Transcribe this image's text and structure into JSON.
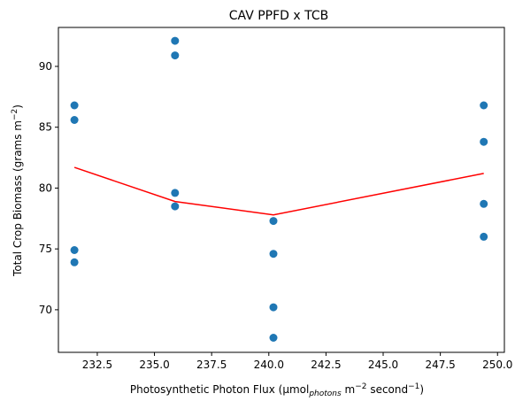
{
  "chart_data": {
    "type": "scatter",
    "title": "CAV PPFD x TCB",
    "xlabel_parts": {
      "prefix": "Photosynthetic Photon Flux (µmol",
      "subscript": "photons",
      "middle": " m",
      "sup1": "−2",
      "middle2": " second",
      "sup2": "−1",
      "suffix": ")"
    },
    "ylabel_parts": {
      "prefix": "Total Crop Biomass (grams m",
      "sup": "−2",
      "suffix": ")"
    },
    "xlim": [
      230.8,
      250.3
    ],
    "ylim": [
      66.5,
      93.2
    ],
    "xticks": [
      232.5,
      235.0,
      237.5,
      240.0,
      242.5,
      245.0,
      247.5,
      250.0
    ],
    "xtick_labels": [
      "232.5",
      "235.0",
      "237.5",
      "240.0",
      "242.5",
      "245.0",
      "247.5",
      "250.0"
    ],
    "yticks": [
      70,
      75,
      80,
      85,
      90
    ],
    "ytick_labels": [
      "70",
      "75",
      "80",
      "85",
      "90"
    ],
    "grid": false,
    "series": [
      {
        "kind": "scatter",
        "color": "#1f77b4",
        "points": [
          {
            "x": 231.5,
            "y": 86.8
          },
          {
            "x": 231.5,
            "y": 85.6
          },
          {
            "x": 231.5,
            "y": 74.9
          },
          {
            "x": 231.5,
            "y": 73.9
          },
          {
            "x": 235.9,
            "y": 92.1
          },
          {
            "x": 235.9,
            "y": 90.9
          },
          {
            "x": 235.9,
            "y": 79.6
          },
          {
            "x": 235.9,
            "y": 78.5
          },
          {
            "x": 240.2,
            "y": 77.3
          },
          {
            "x": 240.2,
            "y": 74.6
          },
          {
            "x": 240.2,
            "y": 70.2
          },
          {
            "x": 240.2,
            "y": 67.7
          },
          {
            "x": 249.4,
            "y": 86.8
          },
          {
            "x": 249.4,
            "y": 83.8
          },
          {
            "x": 249.4,
            "y": 78.7
          },
          {
            "x": 249.4,
            "y": 76.0
          }
        ]
      },
      {
        "kind": "line",
        "color": "#ff0000",
        "points": [
          {
            "x": 231.5,
            "y": 81.7
          },
          {
            "x": 235.9,
            "y": 78.9
          },
          {
            "x": 240.2,
            "y": 77.8
          },
          {
            "x": 249.4,
            "y": 81.2
          }
        ]
      }
    ]
  }
}
